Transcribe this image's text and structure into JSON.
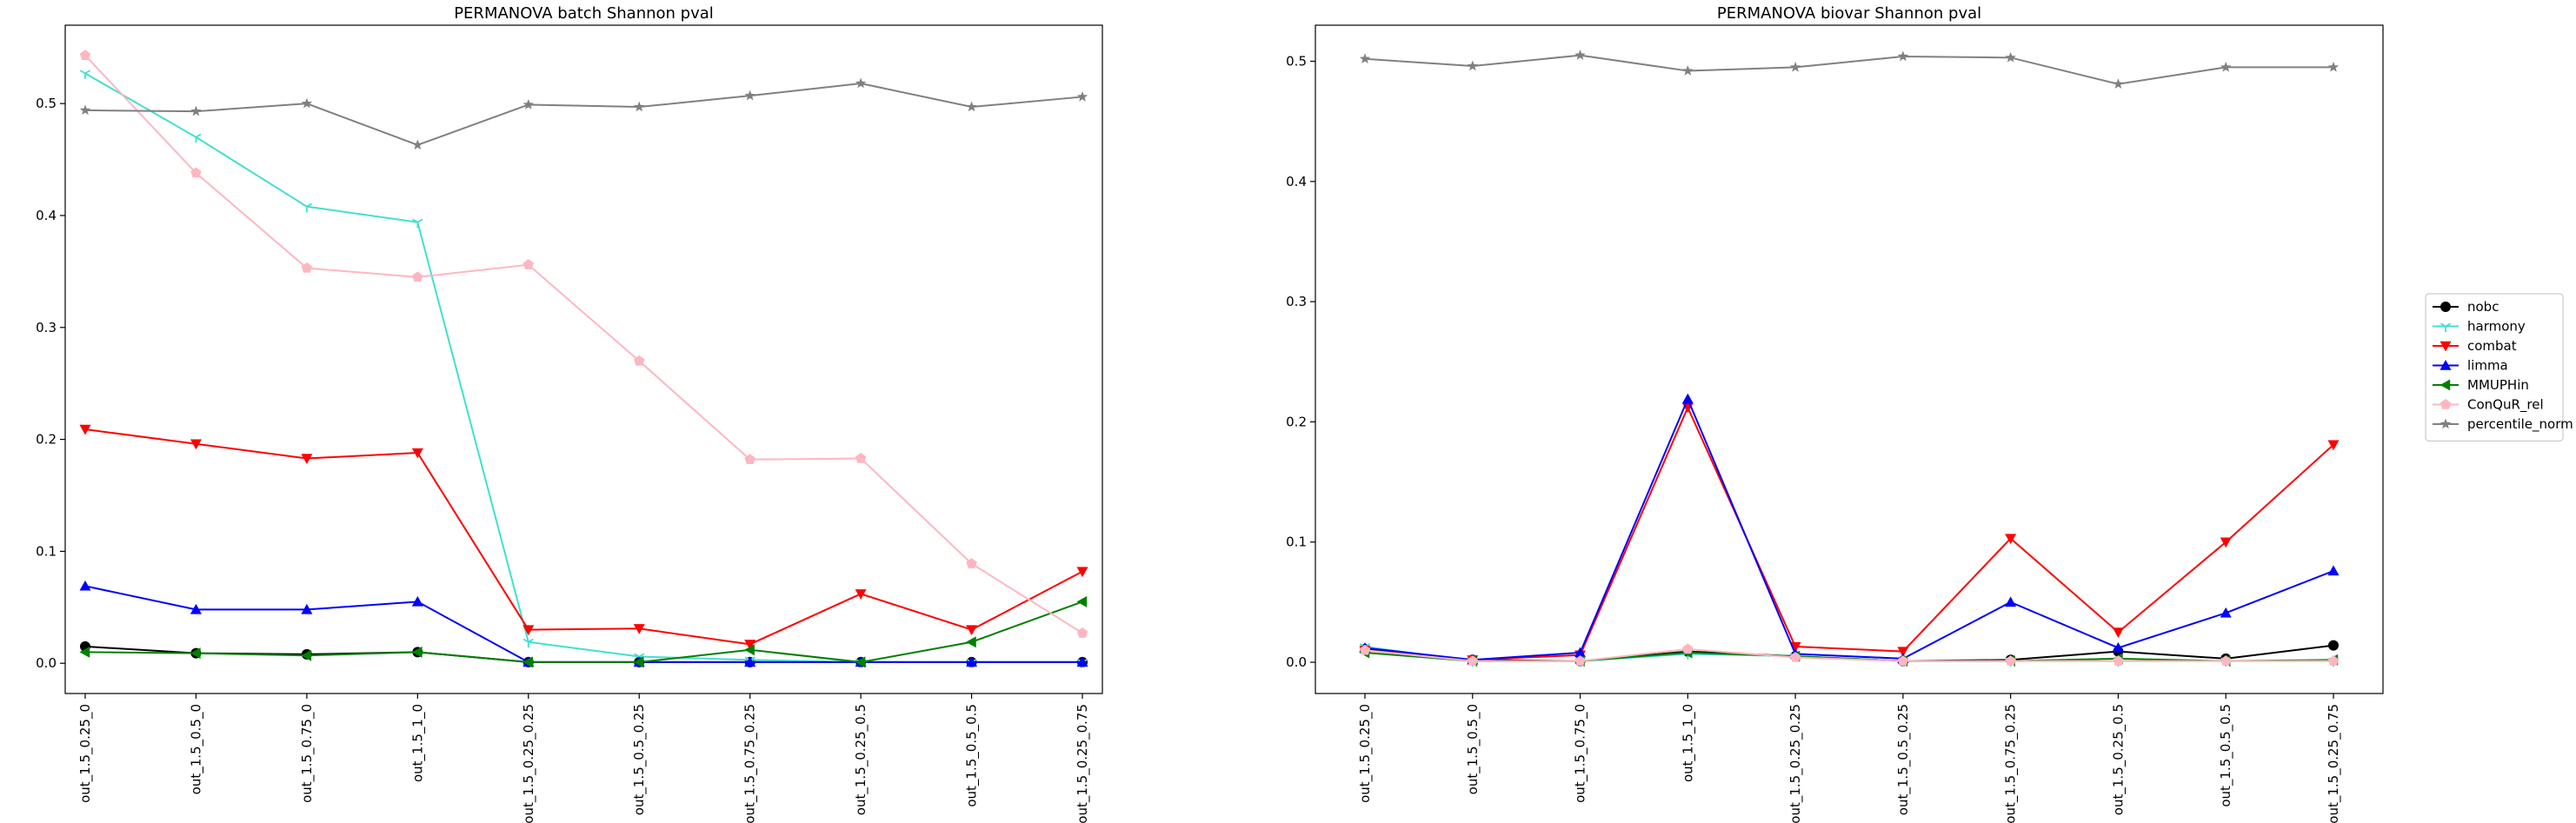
{
  "chart_data": [
    {
      "type": "line",
      "title": "PERMANOVA batch Shannon pval",
      "xlabel": "",
      "ylabel": "",
      "categories": [
        "out_1.5_0.25_0",
        "out_1.5_0.5_0",
        "out_1.5_0.75_0",
        "out_1.5_1_0",
        "out_1.5_0.25_0.25",
        "out_1.5_0.5_0.25",
        "out_1.5_0.75_0.25",
        "out_1.5_0.25_0.5",
        "out_1.5_0.5_0.5",
        "out_1.5_0.25_0.75"
      ],
      "ylim": [
        -0.027,
        0.57
      ],
      "yticks": [
        "0.0",
        "0.1",
        "0.2",
        "0.3",
        "0.4",
        "0.5"
      ],
      "grid": false,
      "series": [
        {
          "name": "nobc",
          "color": "#000000",
          "marker": "circle",
          "values": [
            0.015,
            0.009,
            0.008,
            0.01,
            0.001,
            0.001,
            0.001,
            0.001,
            0.001,
            0.001
          ]
        },
        {
          "name": "harmony",
          "color": "#40e0d0",
          "marker": "tri_down",
          "values": [
            0.527,
            0.47,
            0.408,
            0.394,
            0.019,
            0.006,
            0.003,
            0.001,
            0.001,
            0.001
          ]
        },
        {
          "name": "combat",
          "color": "#ff0000",
          "marker": "triangle_down",
          "values": [
            0.209,
            0.196,
            0.183,
            0.188,
            0.03,
            0.031,
            0.017,
            0.062,
            0.03,
            0.082
          ]
        },
        {
          "name": "limma",
          "color": "#0000ff",
          "marker": "triangle_up",
          "values": [
            0.069,
            0.048,
            0.048,
            0.055,
            0.001,
            0.001,
            0.001,
            0.001,
            0.001,
            0.001
          ]
        },
        {
          "name": "MMUPHin",
          "color": "#008000",
          "marker": "triangle_left",
          "values": [
            0.01,
            0.009,
            0.007,
            0.01,
            0.001,
            0.001,
            0.012,
            0.001,
            0.019,
            0.055
          ]
        },
        {
          "name": "ConQuR_rel",
          "color": "#ffb6c1",
          "marker": "pentagon",
          "values": [
            0.543,
            0.438,
            0.353,
            0.345,
            0.356,
            0.27,
            0.182,
            0.183,
            0.089,
            0.027
          ]
        },
        {
          "name": "percentile_norm",
          "color": "#808080",
          "marker": "star",
          "values": [
            0.494,
            0.493,
            0.5,
            0.463,
            0.499,
            0.497,
            0.507,
            0.518,
            0.497,
            0.506
          ]
        }
      ]
    },
    {
      "type": "line",
      "title": "PERMANOVA biovar Shannon pval",
      "xlabel": "",
      "ylabel": "",
      "categories": [
        "out_1.5_0.25_0",
        "out_1.5_0.5_0",
        "out_1.5_0.75_0",
        "out_1.5_1_0",
        "out_1.5_0.25_0.25",
        "out_1.5_0.5_0.25",
        "out_1.5_0.75_0.25",
        "out_1.5_0.25_0.5",
        "out_1.5_0.5_0.5",
        "out_1.5_0.25_0.75"
      ],
      "ylim": [
        -0.026,
        0.53
      ],
      "yticks": [
        "0.0",
        "0.1",
        "0.2",
        "0.3",
        "0.4",
        "0.5"
      ],
      "grid": false,
      "series": [
        {
          "name": "nobc",
          "color": "#000000",
          "marker": "circle",
          "values": [
            0.011,
            0.002,
            0.001,
            0.009,
            0.005,
            0.001,
            0.002,
            0.009,
            0.003,
            0.014
          ]
        },
        {
          "name": "harmony",
          "color": "#40e0d0",
          "marker": "tri_down",
          "values": [
            0.013,
            0.001,
            0.001,
            0.007,
            0.005,
            0.001,
            0.001,
            0.001,
            0.001,
            0.001
          ]
        },
        {
          "name": "combat",
          "color": "#ff0000",
          "marker": "triangle_down",
          "values": [
            0.01,
            0.002,
            0.006,
            0.212,
            0.013,
            0.009,
            0.103,
            0.025,
            0.1,
            0.181
          ]
        },
        {
          "name": "limma",
          "color": "#0000ff",
          "marker": "triangle_up",
          "values": [
            0.012,
            0.002,
            0.008,
            0.219,
            0.007,
            0.003,
            0.05,
            0.012,
            0.041,
            0.076
          ]
        },
        {
          "name": "MMUPHin",
          "color": "#008000",
          "marker": "triangle_left",
          "values": [
            0.008,
            0.001,
            0.001,
            0.008,
            0.005,
            0.001,
            0.001,
            0.003,
            0.001,
            0.002
          ]
        },
        {
          "name": "ConQuR_rel",
          "color": "#ffb6c1",
          "marker": "pentagon",
          "values": [
            0.01,
            0.001,
            0.001,
            0.011,
            0.004,
            0.001,
            0.001,
            0.001,
            0.001,
            0.001
          ]
        },
        {
          "name": "percentile_norm",
          "color": "#808080",
          "marker": "star",
          "values": [
            0.502,
            0.496,
            0.505,
            0.492,
            0.495,
            0.504,
            0.503,
            0.481,
            0.495,
            0.495
          ]
        }
      ]
    }
  ],
  "legend": {
    "placement": "center-right",
    "entries": [
      "nobc",
      "harmony",
      "combat",
      "limma",
      "MMUPHin",
      "ConQuR_rel",
      "percentile_norm"
    ]
  }
}
